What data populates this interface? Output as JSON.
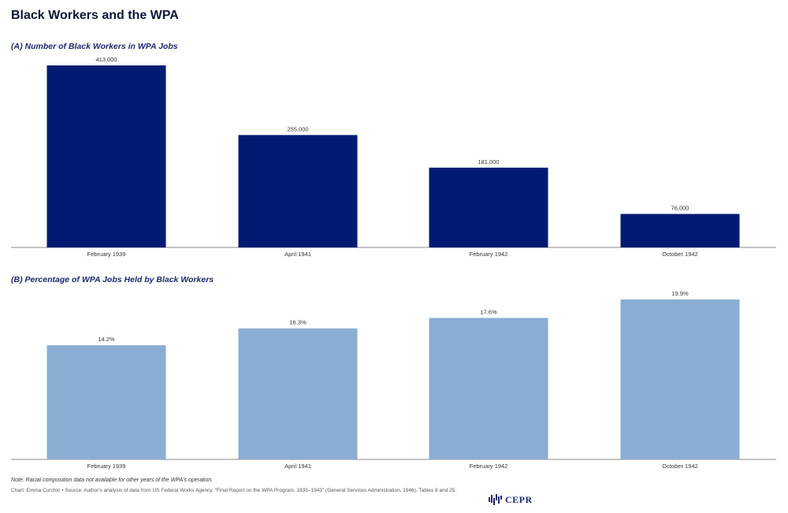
{
  "title": "Black Workers and the WPA",
  "chart_data": [
    {
      "type": "bar",
      "title": "(A) Number of Black Workers in WPA Jobs",
      "categories": [
        "February 1939",
        "April 1941",
        "February 1942",
        "October 1942"
      ],
      "values": [
        413000,
        255000,
        181000,
        76000
      ],
      "value_labels": [
        "413,000",
        "255,000",
        "181,000",
        "76,000"
      ],
      "ylim": [
        0,
        413000
      ],
      "color": "#001a72",
      "grid": false
    },
    {
      "type": "bar",
      "title": "(B) Percentage of WPA Jobs Held by Black Workers",
      "categories": [
        "February 1939",
        "April 1941",
        "February 1942",
        "October 1942"
      ],
      "values": [
        14.2,
        16.3,
        17.6,
        19.9
      ],
      "value_labels": [
        "14.2%",
        "16.3%",
        "17.6%",
        "19.9%"
      ],
      "ylim": [
        0,
        19.9
      ],
      "color": "#8badd4",
      "grid": false
    }
  ],
  "footer": {
    "note": "Note: Racial composition data not available for other years of the WPA's operation.",
    "source": "Chart: Emma Curchin • Source: Author's analysis of data from US Federal Works Agency, \"Final Report on the WPA Program, 1935–1943\" (General Services Administration, 1946), Tables 8 and 25.",
    "logo_text": "CEPR"
  }
}
